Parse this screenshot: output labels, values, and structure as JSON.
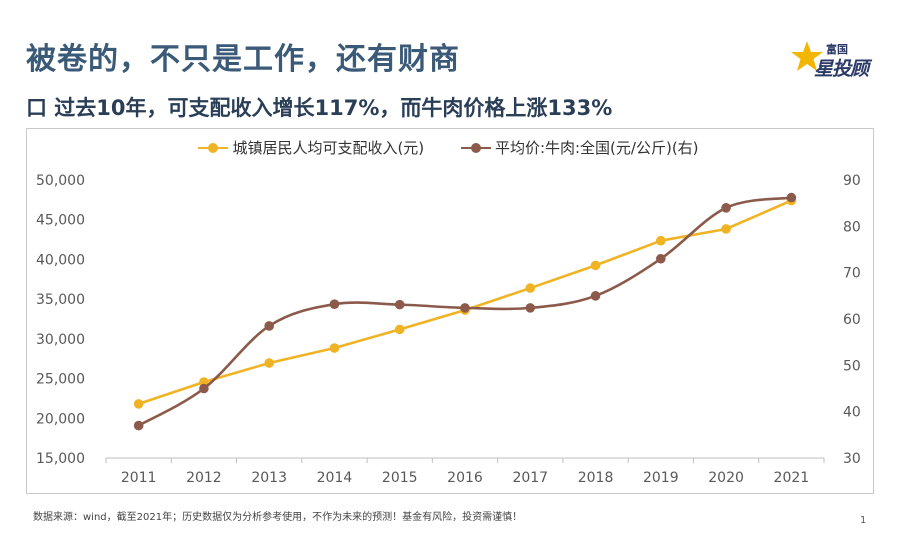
{
  "header": {
    "title": "被卷的，不只是工作，还有财商",
    "subtitle": "口 过去10年，可支配收入增长117%，而牛肉价格上涨133%"
  },
  "logo": {
    "top_text": "富国",
    "brand_text": "星投顾",
    "icon": "star-icon",
    "color": "#2b3a67",
    "star_color": "#f2b705"
  },
  "footer": {
    "note": "数据来源：wind，截至2021年；历史数据仅为分析参考使用，不作为未来的预测！基金有风险，投资需谨慎！",
    "page_number": "1"
  },
  "chart_data": {
    "type": "line",
    "x": [
      "2011",
      "2012",
      "2013",
      "2014",
      "2015",
      "2016",
      "2017",
      "2018",
      "2019",
      "2020",
      "2021"
    ],
    "series": [
      {
        "name": "城镇居民人均可支配收入(元)",
        "axis": "left",
        "color": "#f0b323",
        "smooth": false,
        "values": [
          21810,
          24565,
          26955,
          28844,
          31195,
          33616,
          36396,
          39251,
          42359,
          43834,
          47412
        ]
      },
      {
        "name": "平均价:牛肉:全国(元/公斤)(右)",
        "axis": "right",
        "color": "#8b5a4a",
        "smooth": true,
        "values": [
          37.0,
          45.0,
          58.5,
          63.2,
          63.1,
          62.4,
          62.4,
          65.0,
          73.0,
          84.0,
          86.2
        ]
      }
    ],
    "y_left": {
      "min": 15000,
      "max": 50000,
      "ticks": [
        "15,000",
        "20,000",
        "25,000",
        "30,000",
        "35,000",
        "40,000",
        "45,000",
        "50,000"
      ]
    },
    "y_right": {
      "min": 30,
      "max": 90,
      "ticks": [
        "30",
        "40",
        "50",
        "60",
        "70",
        "80",
        "90"
      ]
    },
    "grid": false,
    "legend_position": "top"
  }
}
